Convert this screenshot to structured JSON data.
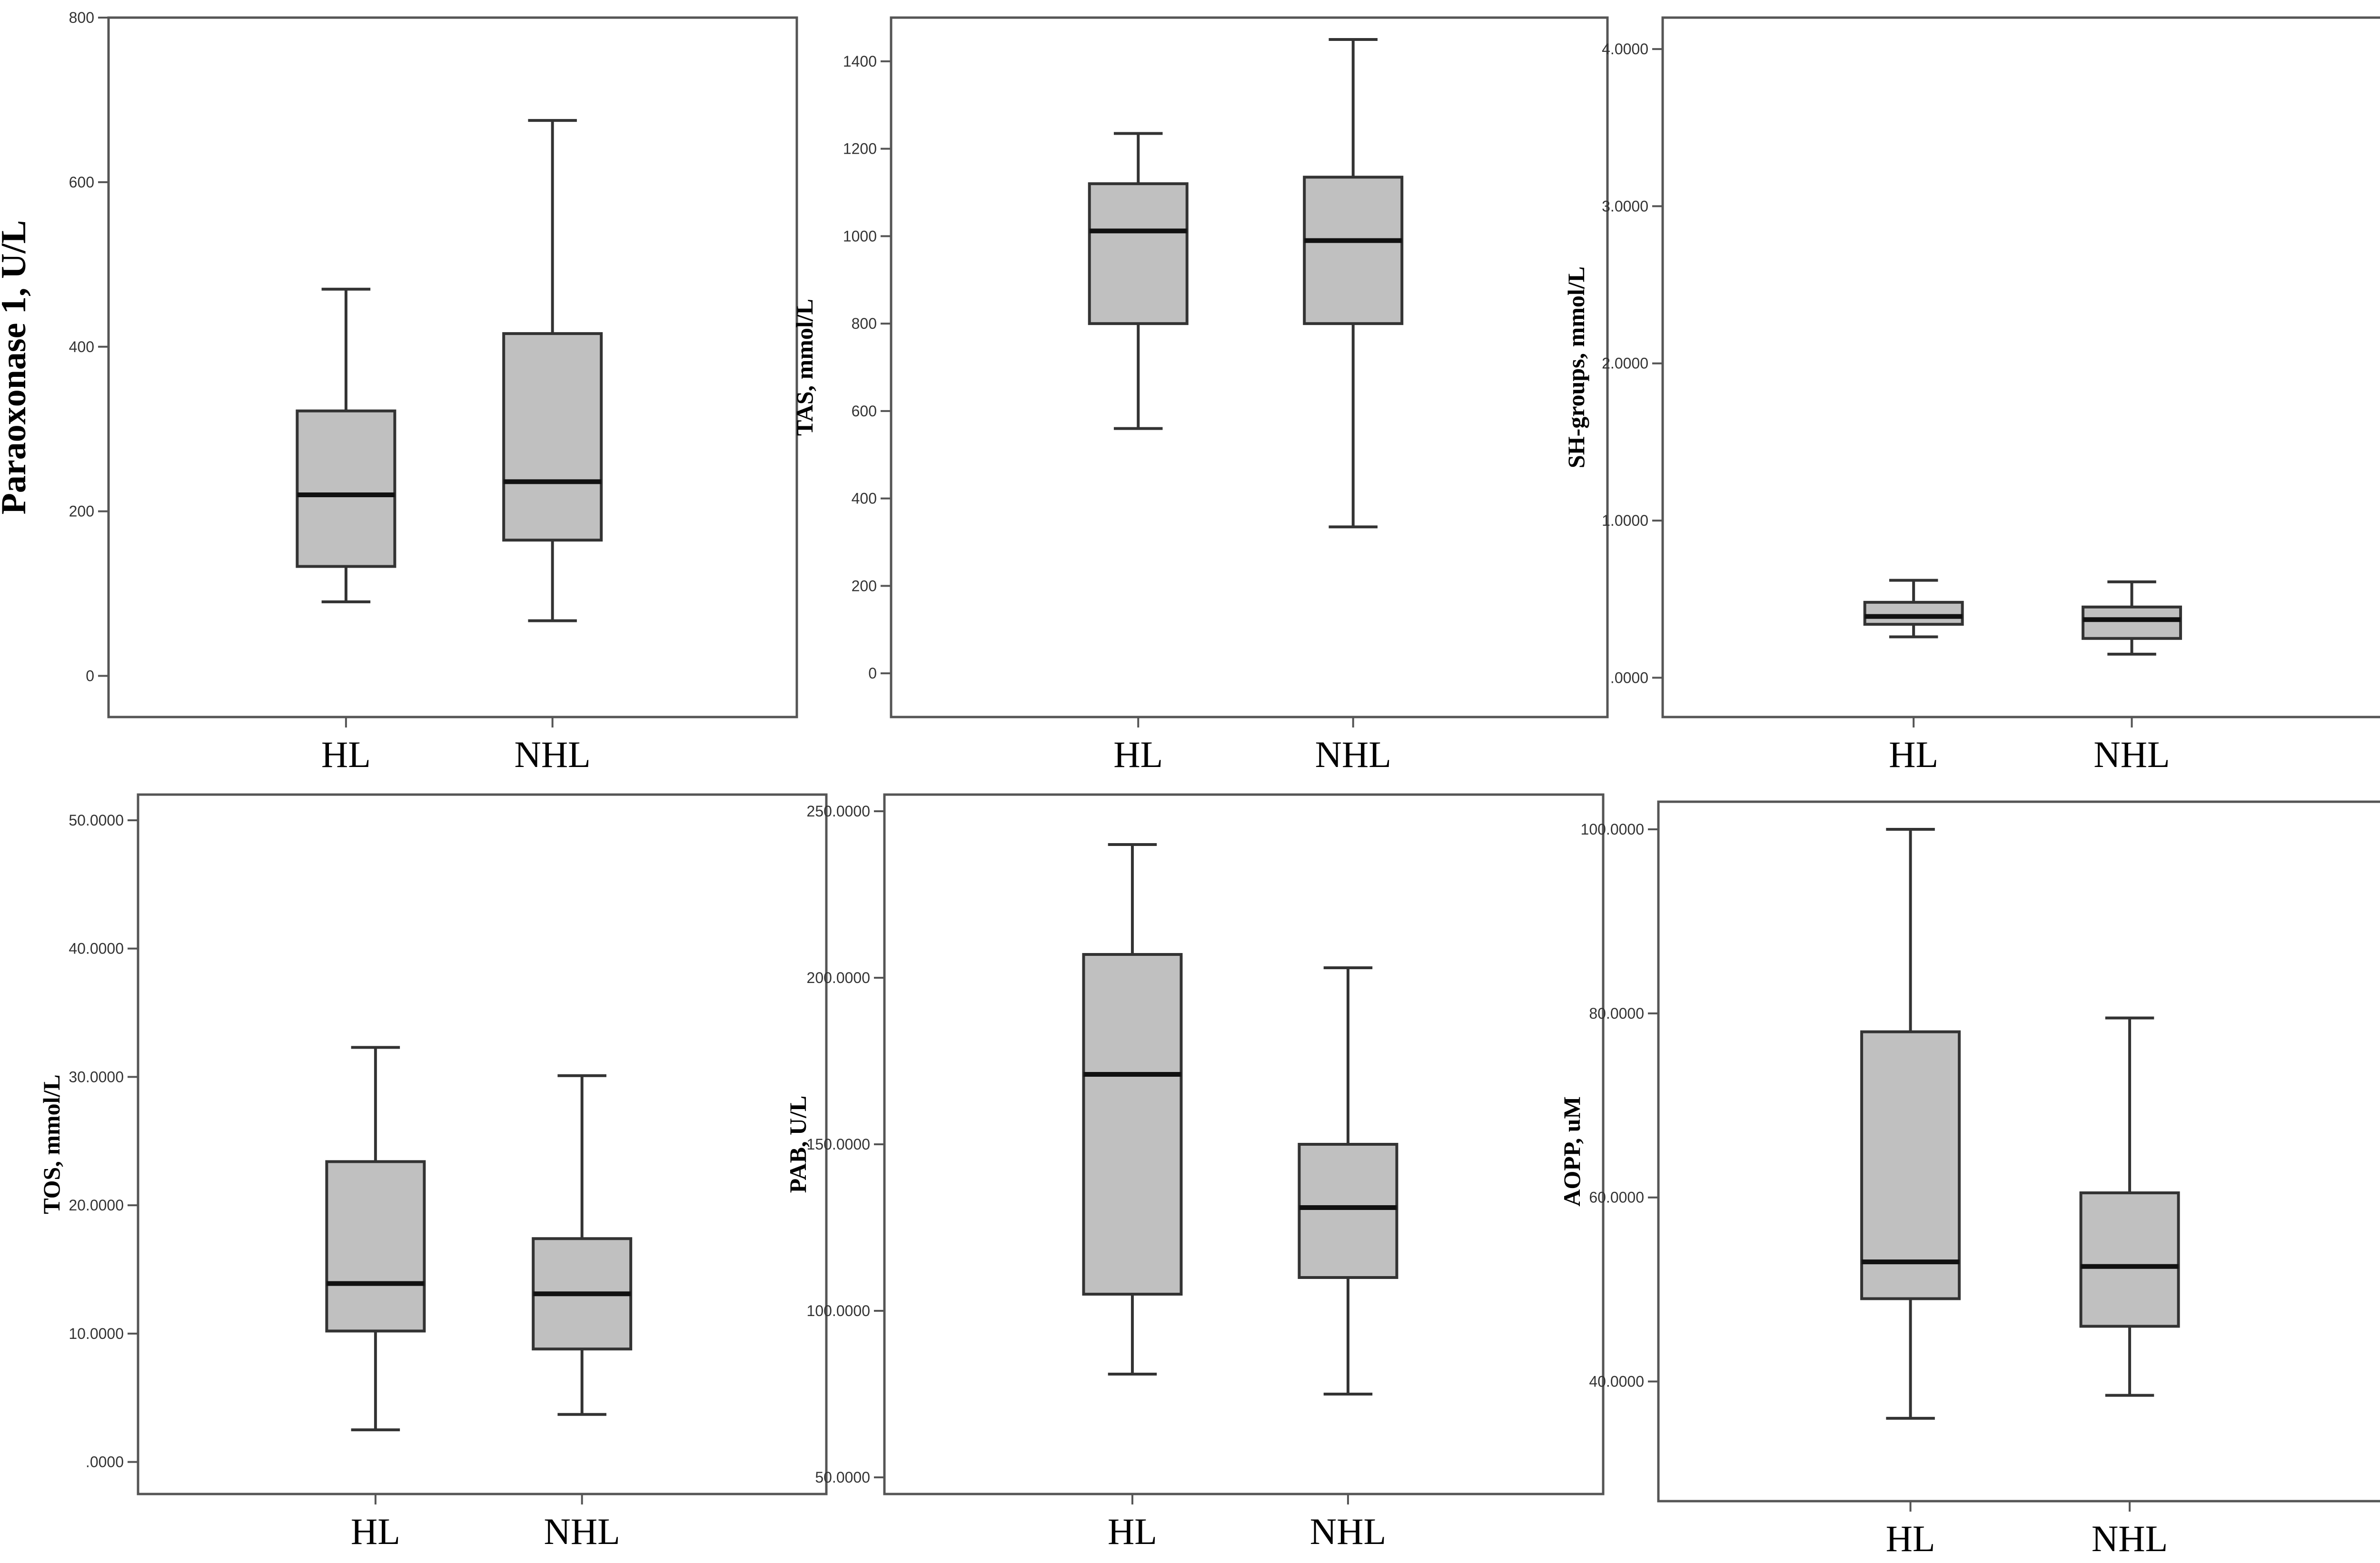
{
  "chart_data": [
    {
      "type": "boxplot",
      "title": "",
      "ylabel": "Paraoxonase 1, U/L",
      "categories": [
        "HL",
        "NHL"
      ],
      "ylim": [
        -50,
        800
      ],
      "yticks": [
        0,
        200,
        400,
        600,
        800
      ],
      "ytick_labels": [
        "0",
        "200",
        "400",
        "600",
        "800"
      ],
      "boxes": [
        {
          "category": "HL",
          "min": 90,
          "q1": 133,
          "median": 220,
          "q3": 322,
          "max": 470
        },
        {
          "category": "NHL",
          "min": 67,
          "q1": 165,
          "median": 236,
          "q3": 416,
          "max": 675
        }
      ]
    },
    {
      "type": "boxplot",
      "title": "",
      "ylabel": "TAS, mmol/L",
      "categories": [
        "HL",
        "NHL"
      ],
      "ylim": [
        -100,
        1500
      ],
      "yticks": [
        0,
        200,
        400,
        600,
        800,
        1000,
        1200,
        1400
      ],
      "ytick_labels": [
        "0",
        "200",
        "400",
        "600",
        "800",
        "1000",
        "1200",
        "1400"
      ],
      "boxes": [
        {
          "category": "HL",
          "min": 560,
          "q1": 800,
          "median": 1012,
          "q3": 1120,
          "max": 1235
        },
        {
          "category": "NHL",
          "min": 335,
          "q1": 800,
          "median": 990,
          "q3": 1135,
          "max": 1450
        }
      ]
    },
    {
      "type": "boxplot",
      "title": "",
      "ylabel": "SH-groups, mmol/L",
      "categories": [
        "HL",
        "NHL"
      ],
      "ylim": [
        -0.25,
        4.2
      ],
      "yticks": [
        0,
        1,
        2,
        3,
        4
      ],
      "ytick_labels": [
        ".0000",
        "1.0000",
        "2.0000",
        "3.0000",
        "4.0000"
      ],
      "boxes": [
        {
          "category": "HL",
          "min": 0.26,
          "q1": 0.34,
          "median": 0.39,
          "q3": 0.48,
          "max": 0.62
        },
        {
          "category": "NHL",
          "min": 0.15,
          "q1": 0.25,
          "median": 0.37,
          "q3": 0.45,
          "max": 0.61
        }
      ]
    },
    {
      "type": "boxplot",
      "title": "",
      "ylabel": "TOS, mmol/L",
      "categories": [
        "HL",
        "NHL"
      ],
      "ylim": [
        -2.5,
        52
      ],
      "yticks": [
        0,
        10,
        20,
        30,
        40,
        50
      ],
      "ytick_labels": [
        ".0000",
        "10.0000",
        "20.0000",
        "30.0000",
        "40.0000",
        "50.0000"
      ],
      "boxes": [
        {
          "category": "HL",
          "min": 2.5,
          "q1": 10.2,
          "median": 13.9,
          "q3": 23.4,
          "max": 32.3
        },
        {
          "category": "NHL",
          "min": 3.7,
          "q1": 8.8,
          "median": 13.1,
          "q3": 17.4,
          "max": 30.1
        }
      ]
    },
    {
      "type": "boxplot",
      "title": "",
      "ylabel": "PAB, U/L",
      "categories": [
        "HL",
        "NHL"
      ],
      "ylim": [
        45,
        255
      ],
      "yticks": [
        50,
        100,
        150,
        200,
        250
      ],
      "ytick_labels": [
        "50.0000",
        "100.0000",
        "150.0000",
        "200.0000",
        "250.0000"
      ],
      "boxes": [
        {
          "category": "HL",
          "min": 81,
          "q1": 105,
          "median": 171,
          "q3": 207,
          "max": 240
        },
        {
          "category": "NHL",
          "min": 75,
          "q1": 110,
          "median": 131,
          "q3": 150,
          "max": 203
        }
      ]
    },
    {
      "type": "boxplot",
      "title": "",
      "ylabel": "AOPP, uM",
      "categories": [
        "HL",
        "NHL"
      ],
      "ylim": [
        27,
        103
      ],
      "yticks": [
        40,
        60,
        80,
        100
      ],
      "ytick_labels": [
        "40.0000",
        "60.0000",
        "80.0000",
        "100.0000"
      ],
      "boxes": [
        {
          "category": "HL",
          "min": 36,
          "q1": 49,
          "median": 53,
          "q3": 78,
          "max": 100
        },
        {
          "category": "NHL",
          "min": 38.5,
          "q1": 46,
          "median": 52.5,
          "q3": 60.5,
          "max": 79.5
        }
      ]
    }
  ],
  "colors": {
    "box_fill": "#c0c0c0",
    "box_stroke": "#333333",
    "median": "#111111",
    "frame": "#555555",
    "background": "#ffffff"
  }
}
